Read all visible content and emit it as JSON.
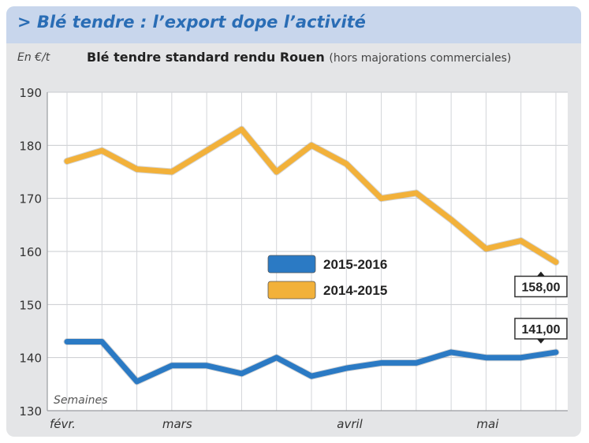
{
  "header": {
    "title": "> Blé tendre : l’export dope l’activité",
    "unit": "En €/t",
    "subtitle": "Blé tendre standard rendu Rouen",
    "subtitle_note": "(hors majorations commerciales)"
  },
  "chart_data": {
    "type": "line",
    "title": "Blé tendre standard rendu Rouen",
    "ylabel": "En €/t",
    "xlabel": "Semaines",
    "ylim": [
      130,
      190
    ],
    "yticks": [
      130,
      140,
      150,
      160,
      170,
      180,
      190
    ],
    "grid": true,
    "legend_placement": "center",
    "month_labels": [
      "févr.",
      "mars",
      "avril",
      "mai"
    ],
    "month_label_weeks": [
      0,
      3,
      8,
      12
    ],
    "x": [
      0,
      1,
      2,
      3,
      4,
      5,
      6,
      7,
      8,
      9,
      10,
      11,
      12,
      13,
      14
    ],
    "series": [
      {
        "name": "2015-2016",
        "color": "#2b7ac4",
        "values": [
          143,
          143,
          135.5,
          138.5,
          138.5,
          137,
          140,
          136.5,
          138,
          139,
          139,
          141,
          140,
          140,
          141
        ]
      },
      {
        "name": "2014-2015",
        "color": "#f2b13a",
        "values": [
          177,
          179,
          175.5,
          175,
          179,
          183,
          175,
          180,
          176.5,
          170,
          171,
          166,
          160.5,
          162,
          158
        ]
      }
    ],
    "annotations": [
      {
        "series": "2014-2015",
        "label": "158,00",
        "value": 158
      },
      {
        "series": "2015-2016",
        "label": "141,00",
        "value": 141
      }
    ]
  }
}
